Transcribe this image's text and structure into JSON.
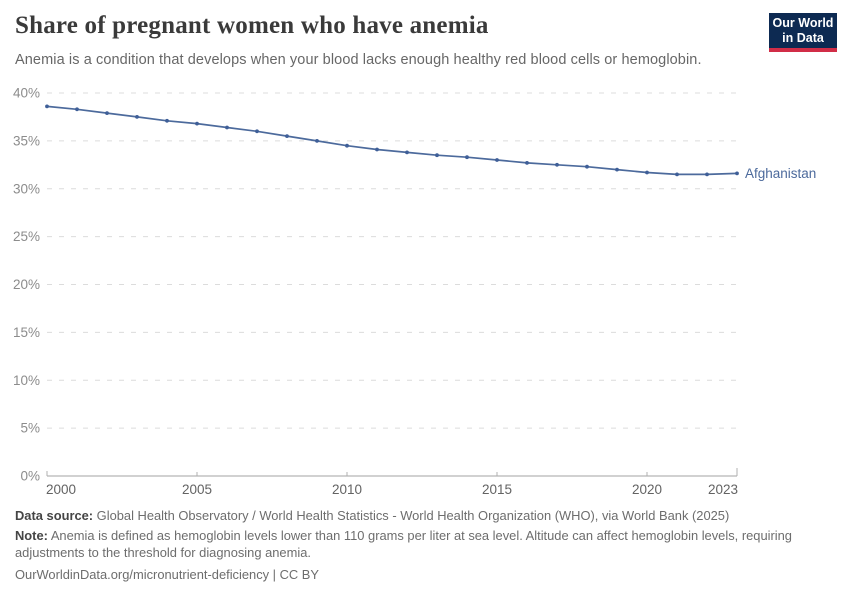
{
  "header": {
    "title": "Share of pregnant women who have anemia",
    "subtitle": "Anemia is a condition that develops when your blood lacks enough healthy red blood cells or hemoglobin.",
    "logo": {
      "line1": "Our World",
      "line2": "in Data"
    }
  },
  "chart_data": {
    "type": "line",
    "title": "Share of pregnant women who have anemia",
    "x": [
      2000,
      2001,
      2002,
      2003,
      2004,
      2005,
      2006,
      2007,
      2008,
      2009,
      2010,
      2011,
      2012,
      2013,
      2014,
      2015,
      2016,
      2017,
      2018,
      2019,
      2020,
      2021,
      2022,
      2023
    ],
    "series": [
      {
        "name": "Afghanistan",
        "color": "#4c6a9c",
        "marker_color": "#3f5f98",
        "values": [
          38.6,
          38.3,
          37.9,
          37.5,
          37.1,
          36.8,
          36.4,
          36.0,
          35.5,
          35.0,
          34.5,
          34.1,
          33.8,
          33.5,
          33.3,
          33.0,
          32.7,
          32.5,
          32.3,
          32.0,
          31.7,
          31.5,
          31.5,
          31.6
        ]
      }
    ],
    "xlabel": "",
    "ylabel": "",
    "ylim": [
      0,
      40
    ],
    "ytick_step": 5,
    "ytick_suffix": "%",
    "xticks": [
      2000,
      2005,
      2010,
      2015,
      2020,
      2023
    ],
    "grid": "horizontal-dashed",
    "legend_position": "end-of-line-label"
  },
  "footer": {
    "data_source_label": "Data source:",
    "data_source_text": " Global Health Observatory / World Health Statistics - World Health Organization (WHO), via World Bank (2025)",
    "note_label": "Note:",
    "note_text": " Anemia is defined as hemoglobin levels lower than 110 grams per liter at sea level. Altitude can affect hemoglobin levels, requiring adjustments to the threshold for diagnosing anemia.",
    "link": "OurWorldinData.org/micronutrient-deficiency | CC BY"
  },
  "colors": {
    "accent_line": "#4c6a9c",
    "marker": "#3f5f98",
    "logo_navy": "#0d2a52",
    "logo_red": "#d12d47",
    "gridline": "#dcdcdc",
    "axis_line": "#a3a3a3",
    "tick": "#b0b0b0",
    "y_label": "#8c8c8c",
    "x_label": "#636363",
    "title_text": "#3a3a3a",
    "subtitle_text": "#676767",
    "footer_text": "#6d6d6d"
  }
}
